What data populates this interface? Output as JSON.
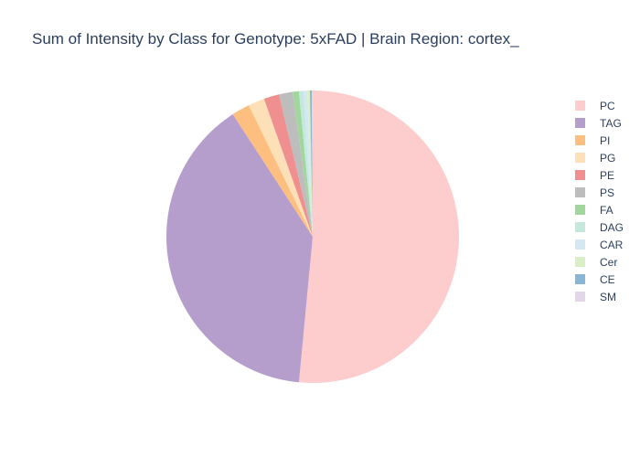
{
  "chart_data": {
    "type": "pie",
    "title": "Sum of Intensity by Class for Genotype: 5xFAD | Brain Region: cortex_",
    "legend_position": "right",
    "slices": [
      {
        "label": "PC",
        "value": 51.5,
        "color": "#fdcdcd"
      },
      {
        "label": "TAG",
        "value": 39.3,
        "color": "#b59dcc"
      },
      {
        "label": "PI",
        "value": 2.0,
        "color": "#fdbf80"
      },
      {
        "label": "PG",
        "value": 1.8,
        "color": "#fde0b8"
      },
      {
        "label": "PE",
        "value": 1.7,
        "color": "#f08f8f"
      },
      {
        "label": "PS",
        "value": 1.5,
        "color": "#bdbdbd"
      },
      {
        "label": "FA",
        "value": 0.7,
        "color": "#a1d79c"
      },
      {
        "label": "DAG",
        "value": 0.5,
        "color": "#c5e8de"
      },
      {
        "label": "CAR",
        "value": 0.4,
        "color": "#d4e8f1"
      },
      {
        "label": "Cer",
        "value": 0.3,
        "color": "#d9f0c7"
      },
      {
        "label": "CE",
        "value": 0.2,
        "color": "#8ab6d6"
      },
      {
        "label": "SM",
        "value": 0.1,
        "color": "#e2d6e8"
      }
    ]
  }
}
